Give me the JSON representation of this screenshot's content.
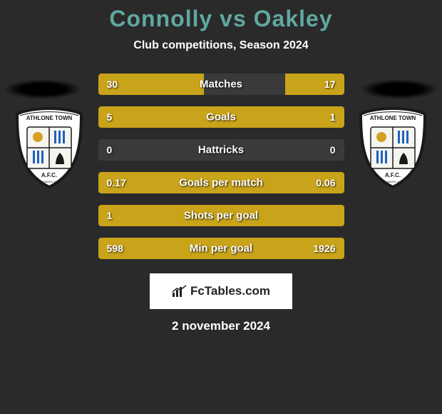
{
  "header": {
    "title": "Connolly vs Oakley",
    "title_color": "#5fa8a0",
    "title_fontsize": 32,
    "subtitle": "Club competitions, Season 2024",
    "subtitle_color": "#ffffff",
    "subtitle_fontsize": 16
  },
  "background_color": "#2a2a2a",
  "crest": {
    "top_text": "ATHLONE TOWN",
    "bottom_text": "A.F.C.",
    "founded": "FOUNDED 1887",
    "shield_color": "#ffffff",
    "border_color": "#1a1a1a",
    "stripe_color": "#2060c0"
  },
  "bars": {
    "left_color": "#c9a319",
    "right_color": "#c9a319",
    "neutral_color": "#3a3a3a",
    "height": 30,
    "gap": 16,
    "label_color": "#ffffff",
    "rows": [
      {
        "label": "Matches",
        "left_val": "30",
        "right_val": "17",
        "left_pct": 43,
        "right_pct": 24
      },
      {
        "label": "Goals",
        "left_val": "5",
        "right_val": "1",
        "left_pct": 78,
        "right_pct": 22
      },
      {
        "label": "Hattricks",
        "left_val": "0",
        "right_val": "0",
        "left_pct": 0,
        "right_pct": 0
      },
      {
        "label": "Goals per match",
        "left_val": "0.17",
        "right_val": "0.06",
        "left_pct": 74,
        "right_pct": 26
      },
      {
        "label": "Shots per goal",
        "left_val": "1",
        "right_val": "",
        "left_pct": 100,
        "right_pct": 0
      },
      {
        "label": "Min per goal",
        "left_val": "598",
        "right_val": "1926",
        "left_pct": 24,
        "right_pct": 76
      }
    ]
  },
  "footer": {
    "brand_text": "FcTables.com",
    "brand_bg": "#ffffff",
    "brand_text_color": "#222222",
    "date": "2 november 2024"
  }
}
